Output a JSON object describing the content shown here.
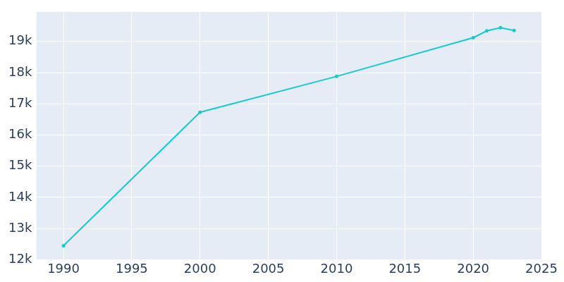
{
  "chart_data": {
    "type": "line",
    "x": [
      1990,
      2000,
      2010,
      2020,
      2021,
      2022,
      2023
    ],
    "values": [
      12450,
      16730,
      17880,
      19120,
      19340,
      19440,
      19350
    ],
    "color": "#17cbcc",
    "marker": "circle",
    "xlim": [
      1988,
      2025
    ],
    "xticks": [
      1990,
      1995,
      2000,
      2005,
      2010,
      2015,
      2020,
      2025
    ],
    "ylim": [
      12000,
      19950
    ],
    "yticks": [
      {
        "value": 12000,
        "label": "12k"
      },
      {
        "value": 13000,
        "label": "13k"
      },
      {
        "value": 14000,
        "label": "14k"
      },
      {
        "value": 15000,
        "label": "15k"
      },
      {
        "value": 16000,
        "label": "16k"
      },
      {
        "value": 17000,
        "label": "17k"
      },
      {
        "value": 18000,
        "label": "18k"
      },
      {
        "value": 19000,
        "label": "19k"
      }
    ],
    "grid": true
  }
}
